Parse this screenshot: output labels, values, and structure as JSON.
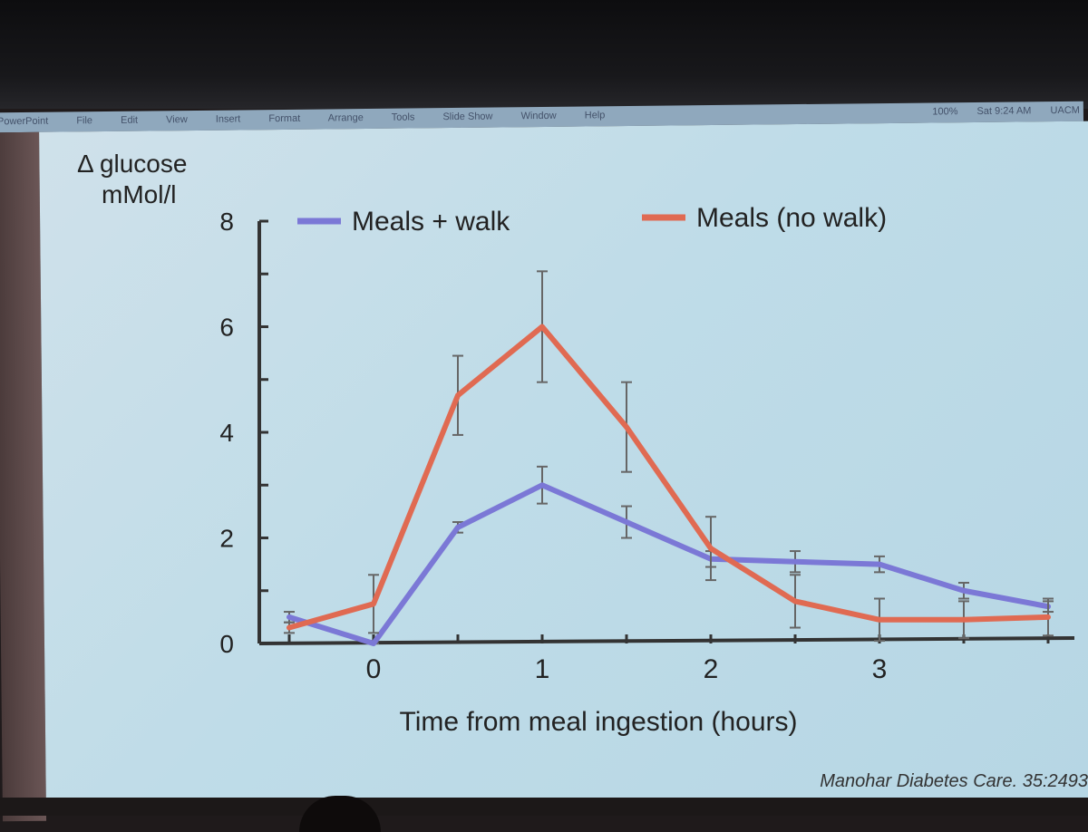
{
  "menubar": {
    "items": [
      "PowerPoint",
      "File",
      "Edit",
      "View",
      "Insert",
      "Format",
      "Arrange",
      "Tools",
      "Slide Show",
      "Window",
      "Help"
    ],
    "battery": "100%",
    "clock": "Sat 9:24 AM",
    "user": "UACM"
  },
  "slide": {
    "ylabel_line1": "Δ glucose",
    "ylabel_line2": "mMol/l",
    "xlabel": "Time from meal ingestion (hours)",
    "citation": "Manohar Diabetes Care. 35:2493"
  },
  "chart_data": {
    "type": "line",
    "xlabel": "Time from meal ingestion (hours)",
    "ylabel": "Δ glucose mMol/l",
    "xlim": [
      -0.5,
      4.0
    ],
    "ylim": [
      0,
      8
    ],
    "xticks": [
      0,
      1,
      2,
      3
    ],
    "yticks": [
      0,
      2,
      4,
      6,
      8
    ],
    "legend_position": "top",
    "series": [
      {
        "name": "Meals + walk",
        "color": "#7b78d6",
        "x": [
          -0.5,
          0,
          0.5,
          1,
          1.5,
          2,
          2.5,
          3,
          3.5,
          4
        ],
        "y": [
          0.5,
          0.0,
          2.2,
          3.0,
          2.3,
          1.6,
          1.55,
          1.5,
          1.0,
          0.7
        ],
        "err": [
          0.1,
          0.05,
          0.1,
          0.35,
          0.3,
          0.15,
          0.2,
          0.15,
          0.15,
          0.1
        ]
      },
      {
        "name": "Meals (no walk)",
        "color": "#e06a52",
        "x": [
          -0.5,
          0,
          0.5,
          1,
          1.5,
          2,
          2.5,
          3,
          3.5,
          4
        ],
        "y": [
          0.3,
          0.75,
          4.7,
          6.0,
          4.1,
          1.8,
          0.8,
          0.45,
          0.45,
          0.5
        ],
        "err": [
          0.1,
          0.55,
          0.75,
          1.05,
          0.85,
          0.6,
          0.5,
          0.4,
          0.35,
          0.35
        ]
      }
    ]
  }
}
